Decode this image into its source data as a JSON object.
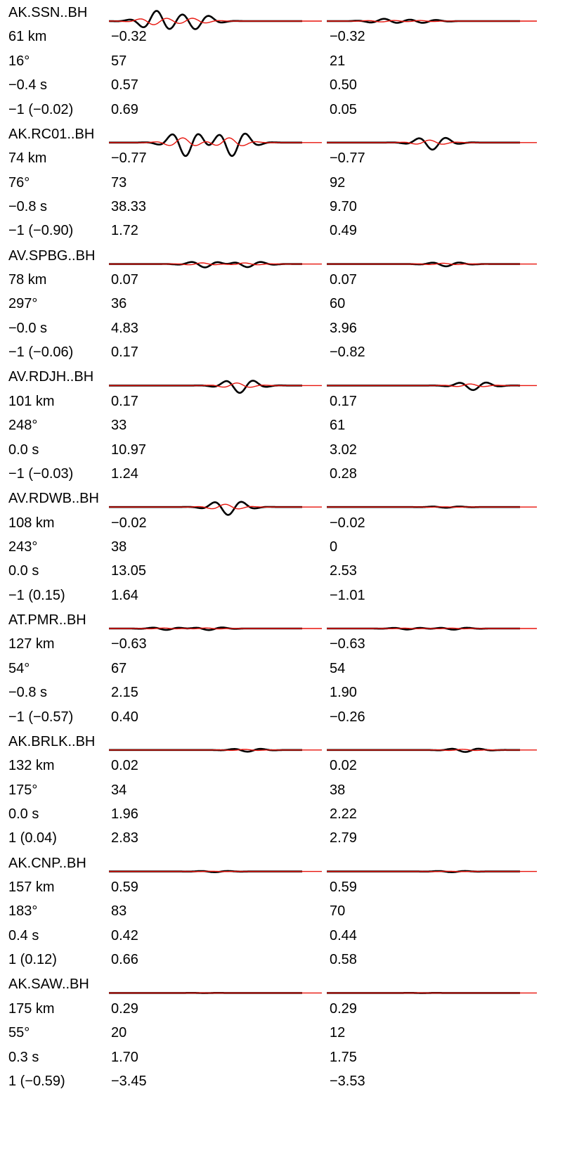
{
  "chart_data": {
    "type": "line",
    "trace_colors": {
      "observed": "#000000",
      "synthetic": "#e8140c"
    },
    "panels": [
      "left",
      "right"
    ],
    "stations": [
      {
        "name": "AK.SSN..BH",
        "distance": "61 km",
        "azimuth": "16°",
        "shift": "−0.4 s",
        "polarity": "−1 (−0.02)",
        "left": {
          "cc": "−0.32",
          "pct": "57",
          "amp_ratio": "0.57",
          "log_amp": "0.69"
        },
        "right": {
          "cc": "−0.32",
          "pct": "21",
          "amp_ratio": "0.50",
          "log_amp": "0.05"
        },
        "wave_left": {
          "t": [
            0.25,
            0.45
          ],
          "a": [
            3.6,
            -2.8
          ],
          "s": 0.28
        },
        "wave_right": {
          "t": [
            0.3,
            0.5
          ],
          "a": [
            0.8,
            -0.6
          ],
          "s": 0.25
        }
      },
      {
        "name": "AK.RC01..BH",
        "distance": "74 km",
        "azimuth": "76°",
        "shift": "−0.8 s",
        "polarity": "−1 (−0.90)",
        "left": {
          "cc": "−0.77",
          "pct": "73",
          "amp_ratio": "38.33",
          "log_amp": "1.72"
        },
        "right": {
          "cc": "−0.77",
          "pct": "92",
          "amp_ratio": "9.70",
          "log_amp": "0.49"
        },
        "wave_left": {
          "t": [
            0.4,
            0.64
          ],
          "a": [
            -4.8,
            -4.8
          ],
          "s": 0.9
        },
        "wave_right": {
          "t": [
            0.55
          ],
          "a": [
            -2.5
          ],
          "s": 1.0
        }
      },
      {
        "name": "AV.SPBG..BH",
        "distance": "78 km",
        "azimuth": "297°",
        "shift": "−0.0 s",
        "polarity": "−1 (−0.06)",
        "left": {
          "cc": "0.07",
          "pct": "36",
          "amp_ratio": "4.83",
          "log_amp": "0.17"
        },
        "right": {
          "cc": "0.07",
          "pct": "60",
          "amp_ratio": "3.96",
          "log_amp": "−0.82"
        },
        "wave_left": {
          "t": [
            0.5,
            0.72
          ],
          "a": [
            -1.2,
            -1.1
          ],
          "s": 0.75
        },
        "wave_right": {
          "t": [
            0.62
          ],
          "a": [
            -0.8
          ],
          "s": 0.9
        }
      },
      {
        "name": "AV.RDJH..BH",
        "distance": "101 km",
        "azimuth": "248°",
        "shift": "0.0 s",
        "polarity": "−1 (−0.03)",
        "left": {
          "cc": "0.17",
          "pct": "33",
          "amp_ratio": "10.97",
          "log_amp": "1.24"
        },
        "right": {
          "cc": "0.17",
          "pct": "61",
          "amp_ratio": "3.02",
          "log_amp": "0.28"
        },
        "wave_left": {
          "t": [
            0.68
          ],
          "a": [
            -2.6
          ],
          "s": 1.0
        },
        "wave_right": {
          "t": [
            0.76
          ],
          "a": [
            -1.6
          ],
          "s": 0.85
        }
      },
      {
        "name": "AV.RDWB..BH",
        "distance": "108 km",
        "azimuth": "243°",
        "shift": "0.0 s",
        "polarity": "−1 (0.15)",
        "left": {
          "cc": "−0.02",
          "pct": "38",
          "amp_ratio": "13.05",
          "log_amp": "1.64"
        },
        "right": {
          "cc": "−0.02",
          "pct": "0",
          "amp_ratio": "2.53",
          "log_amp": "−1.01"
        },
        "wave_left": {
          "t": [
            0.62
          ],
          "a": [
            -2.8
          ],
          "s": 1.0
        },
        "wave_right": {
          "t": [
            0.62
          ],
          "a": [
            -0.25
          ],
          "s": 0.9
        }
      },
      {
        "name": "AT.PMR..BH",
        "distance": "127 km",
        "azimuth": "54°",
        "shift": "−0.8 s",
        "polarity": "−1 (−0.57)",
        "left": {
          "cc": "−0.63",
          "pct": "67",
          "amp_ratio": "2.15",
          "log_amp": "0.40"
        },
        "right": {
          "cc": "−0.63",
          "pct": "54",
          "amp_ratio": "1.90",
          "log_amp": "−0.26"
        },
        "wave_left": {
          "t": [
            0.3,
            0.52
          ],
          "a": [
            -0.5,
            -0.55
          ],
          "s": 0.75
        },
        "wave_right": {
          "t": [
            0.42,
            0.66
          ],
          "a": [
            -0.35,
            -0.4
          ],
          "s": 0.75
        }
      },
      {
        "name": "AK.BRLK..BH",
        "distance": "132 km",
        "azimuth": "175°",
        "shift": "0.0 s",
        "polarity": "1 (0.04)",
        "left": {
          "cc": "0.02",
          "pct": "34",
          "amp_ratio": "1.96",
          "log_amp": "2.83"
        },
        "right": {
          "cc": "0.02",
          "pct": "38",
          "amp_ratio": "2.22",
          "log_amp": "2.79"
        },
        "wave_left": {
          "t": [
            0.72
          ],
          "a": [
            -0.6
          ],
          "s": 0.9
        },
        "wave_right": {
          "t": [
            0.72
          ],
          "a": [
            -0.7
          ],
          "s": 0.9
        }
      },
      {
        "name": "AK.CNP..BH",
        "distance": "157 km",
        "azimuth": "183°",
        "shift": "0.4 s",
        "polarity": "1 (0.12)",
        "left": {
          "cc": "0.59",
          "pct": "83",
          "amp_ratio": "0.42",
          "log_amp": "0.66"
        },
        "right": {
          "cc": "0.59",
          "pct": "70",
          "amp_ratio": "0.44",
          "log_amp": "0.58"
        },
        "wave_left": {
          "t": [
            0.55
          ],
          "a": [
            -0.25
          ],
          "s": 0.9
        },
        "wave_right": {
          "t": [
            0.65
          ],
          "a": [
            -0.25
          ],
          "s": 0.9
        }
      },
      {
        "name": "AK.SAW..BH",
        "distance": "175 km",
        "azimuth": "55°",
        "shift": "0.3 s",
        "polarity": "1 (−0.59)",
        "left": {
          "cc": "0.29",
          "pct": "20",
          "amp_ratio": "1.70",
          "log_amp": "−3.45"
        },
        "right": {
          "cc": "0.29",
          "pct": "12",
          "amp_ratio": "1.75",
          "log_amp": "−3.53"
        },
        "wave_left": {
          "t": [
            0.5
          ],
          "a": [
            -0.05
          ],
          "s": 0.8
        },
        "wave_right": {
          "t": [
            0.5
          ],
          "a": [
            -0.05
          ],
          "s": 0.8
        }
      }
    ]
  }
}
